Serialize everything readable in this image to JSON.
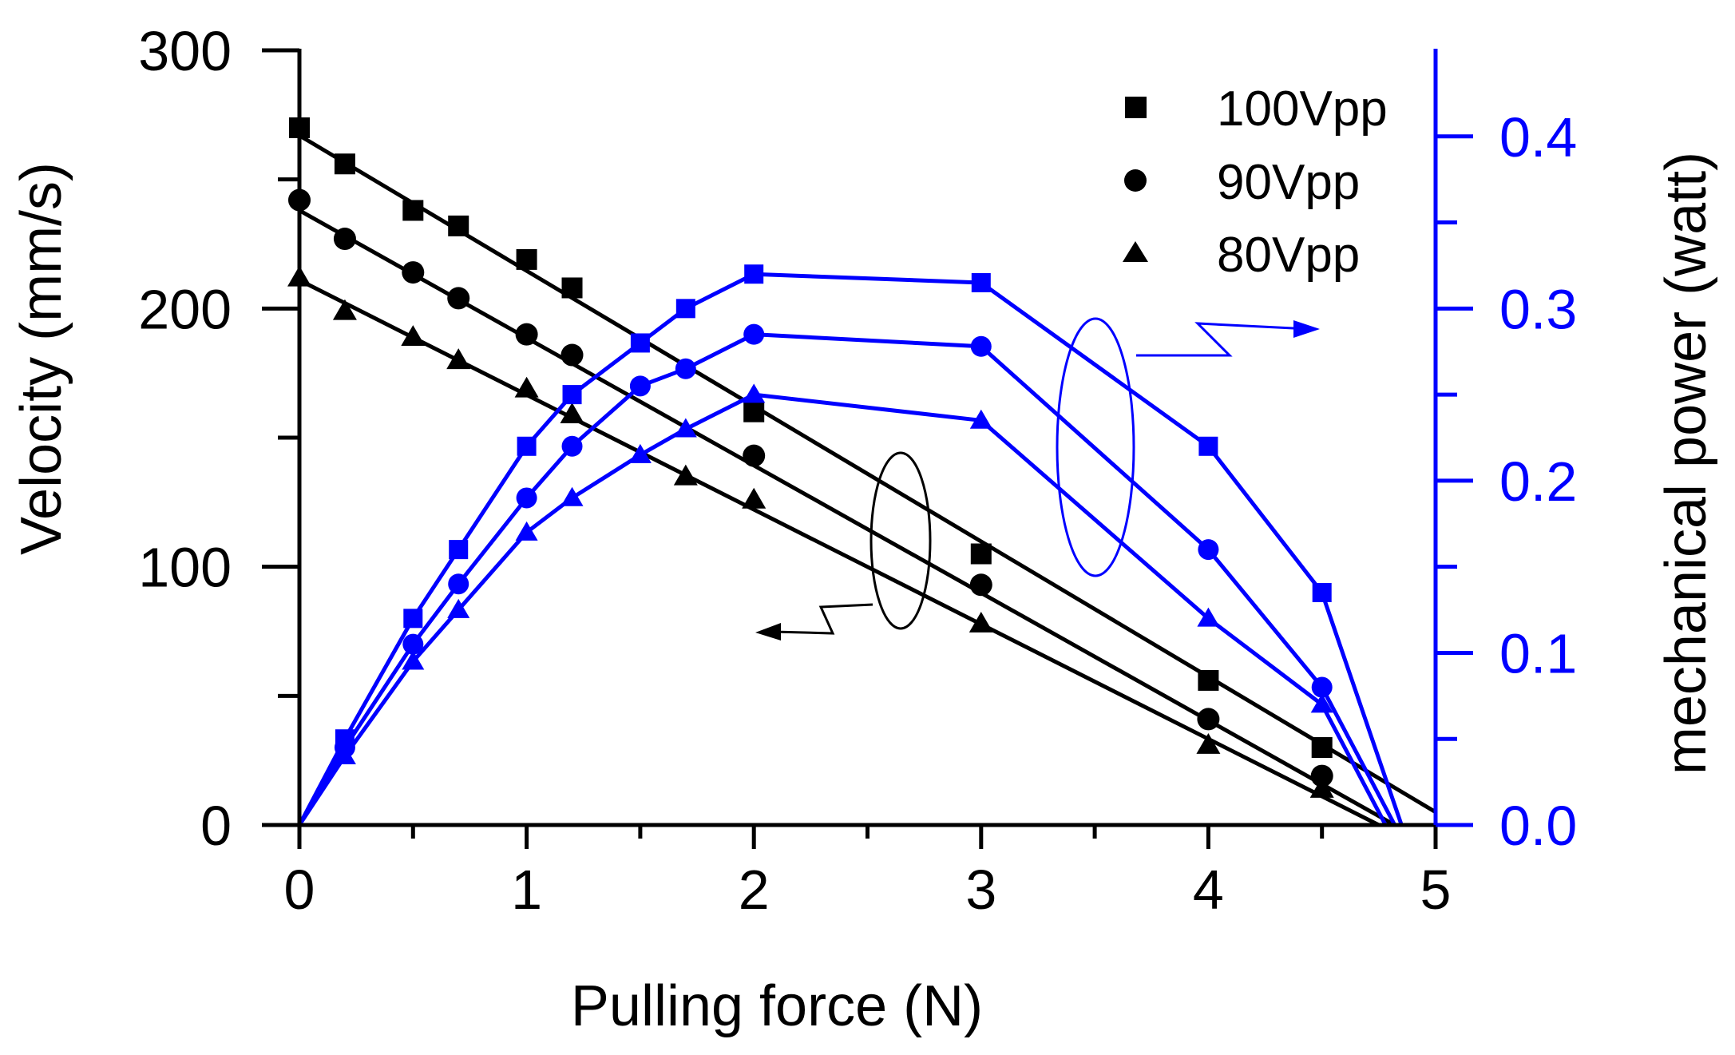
{
  "chart_data": {
    "type": "line",
    "xlabel": "Pulling force (N)",
    "ylabel_left": "Velocity (mm/s)",
    "ylabel_right": "mechanical power (watt)",
    "xlim": [
      0,
      5
    ],
    "ylim_left": [
      0,
      300
    ],
    "ylim_right": [
      0,
      0.45
    ],
    "x_ticks": [
      "0",
      "1",
      "2",
      "3",
      "4",
      "5"
    ],
    "y_left_ticks": [
      "0",
      "100",
      "200",
      "300"
    ],
    "y_right_ticks": [
      "0.0",
      "0.1",
      "0.2",
      "0.3",
      "0.4"
    ],
    "grid": false,
    "legend_position": "top-right",
    "colors": {
      "velocity": "#000000",
      "power": "#0000ff"
    },
    "velocity_series": [
      {
        "name": "100Vpp",
        "marker": "square",
        "x": [
          0,
          0.2,
          0.5,
          0.7,
          1.0,
          1.2,
          2.0,
          3.0,
          4.0,
          4.5
        ],
        "y": [
          270,
          256,
          238,
          232,
          219,
          208,
          160,
          105,
          56,
          30
        ],
        "fit": {
          "x": [
            0,
            5
          ],
          "y": [
            267,
            5
          ]
        }
      },
      {
        "name": "90Vpp",
        "marker": "circle",
        "x": [
          0,
          0.2,
          0.5,
          0.7,
          1.0,
          1.2,
          2.0,
          3.0,
          4.0,
          4.5
        ],
        "y": [
          242,
          227,
          214,
          204,
          190,
          182,
          143,
          93,
          41,
          19
        ],
        "fit": {
          "x": [
            0,
            4.82
          ],
          "y": [
            238,
            0
          ]
        }
      },
      {
        "name": "80Vpp",
        "marker": "triangle",
        "x": [
          0,
          0.2,
          0.5,
          0.7,
          1.0,
          1.2,
          1.7,
          2.0,
          3.0,
          4.0,
          4.5
        ],
        "y": [
          212,
          199,
          189,
          180,
          169,
          159,
          135,
          126,
          78,
          31,
          14
        ],
        "fit": {
          "x": [
            0,
            4.75
          ],
          "y": [
            211,
            0
          ]
        }
      }
    ],
    "power_series": [
      {
        "name": "100Vpp",
        "marker": "square",
        "x": [
          0,
          0.2,
          0.5,
          0.7,
          1.0,
          1.2,
          1.5,
          1.7,
          2.0,
          3.0,
          4.0,
          4.5,
          4.85
        ],
        "y": [
          0,
          0.05,
          0.12,
          0.16,
          0.22,
          0.25,
          0.28,
          0.3,
          0.32,
          0.315,
          0.22,
          0.135,
          0
        ]
      },
      {
        "name": "90Vpp",
        "marker": "circle",
        "x": [
          0,
          0.2,
          0.5,
          0.7,
          1.0,
          1.2,
          1.5,
          1.7,
          2.0,
          3.0,
          4.0,
          4.5,
          4.82
        ],
        "y": [
          0,
          0.045,
          0.105,
          0.14,
          0.19,
          0.22,
          0.255,
          0.265,
          0.285,
          0.278,
          0.16,
          0.08,
          0
        ]
      },
      {
        "name": "80Vpp",
        "marker": "triangle",
        "x": [
          0,
          0.2,
          0.5,
          0.7,
          1.0,
          1.2,
          1.5,
          1.7,
          2.0,
          3.0,
          4.0,
          4.5,
          4.78
        ],
        "y": [
          0,
          0.04,
          0.095,
          0.125,
          0.17,
          0.19,
          0.215,
          0.23,
          0.25,
          0.235,
          0.12,
          0.07,
          0
        ]
      }
    ]
  }
}
